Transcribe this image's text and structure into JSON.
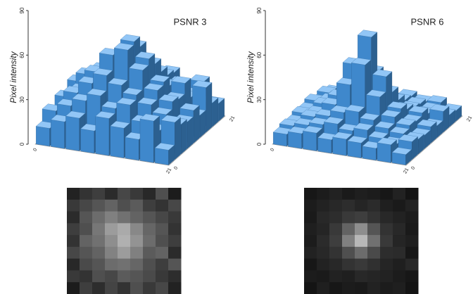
{
  "chart_data": [
    {
      "type": "bar3d",
      "title": "PSNR 3",
      "zlabel": "Pixel intensity",
      "color": "#4aa0f0",
      "zlim": [
        0,
        90
      ],
      "zticks": [
        0,
        30,
        60,
        90
      ],
      "xticks": [
        0,
        21
      ],
      "yticks": [
        0,
        21
      ],
      "values": [
        [
          12,
          18,
          22,
          15,
          25,
          20,
          14,
          28,
          10
        ],
        [
          20,
          25,
          30,
          35,
          28,
          32,
          22,
          18,
          25
        ],
        [
          15,
          30,
          38,
          45,
          40,
          35,
          30,
          25,
          20
        ],
        [
          22,
          28,
          42,
          55,
          60,
          48,
          36,
          30,
          18
        ],
        [
          18,
          35,
          40,
          50,
          62,
          52,
          38,
          28,
          22
        ],
        [
          25,
          30,
          35,
          46,
          55,
          45,
          32,
          35,
          15
        ],
        [
          14,
          26,
          30,
          38,
          40,
          36,
          28,
          22,
          30
        ],
        [
          20,
          18,
          28,
          25,
          32,
          30,
          26,
          20,
          16
        ],
        [
          10,
          22,
          16,
          24,
          18,
          28,
          20,
          25,
          12
        ]
      ]
    },
    {
      "type": "bar3d",
      "title": "PSNR 6",
      "zlabel": "Pixel intensity",
      "color": "#4aa0f0",
      "zlim": [
        0,
        90
      ],
      "zticks": [
        0,
        30,
        60,
        90
      ],
      "xticks": [
        0,
        21
      ],
      "yticks": [
        0,
        21
      ],
      "values": [
        [
          8,
          10,
          12,
          9,
          11,
          10,
          8,
          12,
          7
        ],
        [
          10,
          12,
          14,
          16,
          13,
          15,
          11,
          9,
          12
        ],
        [
          9,
          14,
          16,
          20,
          22,
          18,
          14,
          12,
          10
        ],
        [
          11,
          13,
          20,
          35,
          50,
          30,
          18,
          14,
          9
        ],
        [
          10,
          15,
          22,
          45,
          65,
          40,
          20,
          13,
          11
        ],
        [
          12,
          14,
          18,
          28,
          38,
          26,
          16,
          15,
          8
        ],
        [
          8,
          12,
          14,
          18,
          20,
          17,
          13,
          11,
          14
        ],
        [
          10,
          9,
          12,
          11,
          14,
          13,
          12,
          10,
          8
        ],
        [
          7,
          11,
          8,
          10,
          9,
          12,
          10,
          11,
          7
        ]
      ]
    }
  ]
}
